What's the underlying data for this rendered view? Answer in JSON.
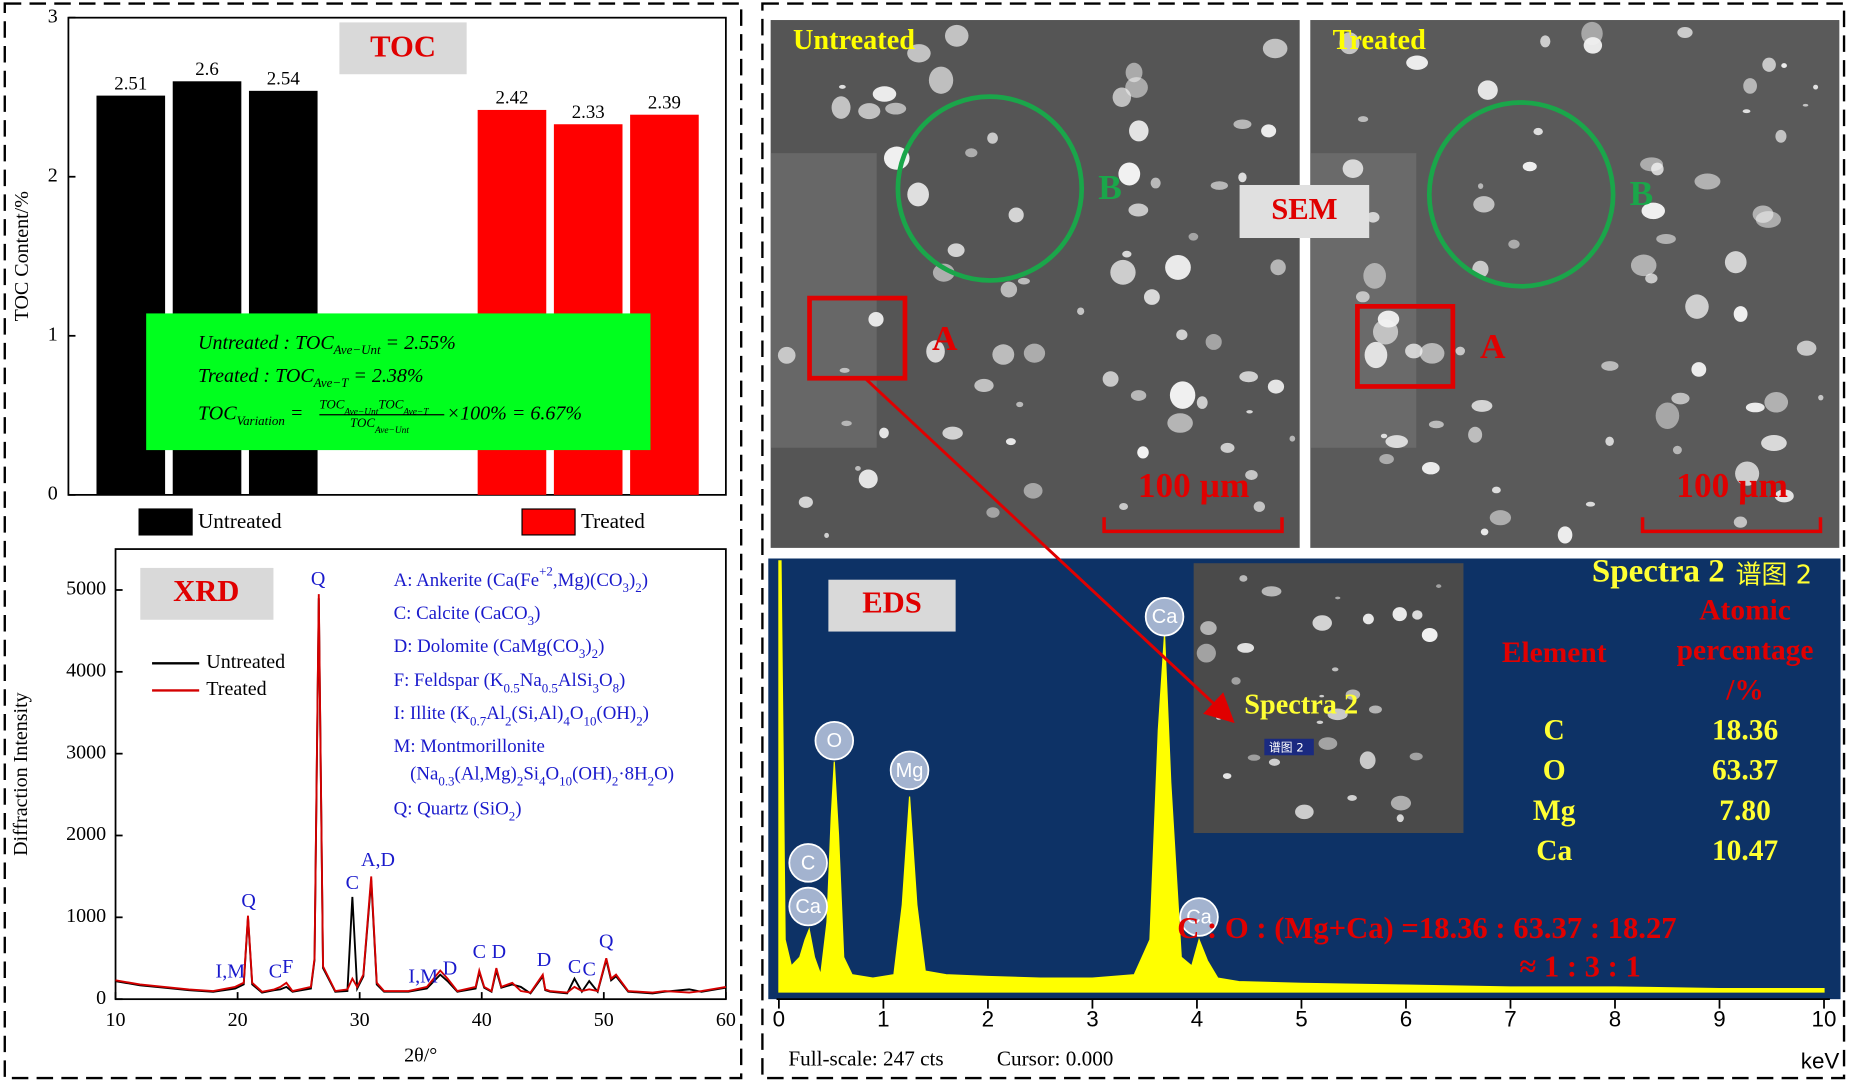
{
  "chart_data": [
    {
      "type": "bar",
      "title": "TOC",
      "ylabel": "TOC Content/%",
      "categories": [
        null,
        null,
        null,
        null,
        null,
        null,
        null,
        null
      ],
      "series": [
        {
          "name": "Untreated",
          "color": "#000000",
          "values": [
            2.51,
            2.6,
            2.54,
            null,
            null,
            null,
            null,
            null
          ]
        },
        {
          "name": "Treated",
          "color": "#ff0000",
          "values": [
            null,
            null,
            null,
            null,
            null,
            2.42,
            2.33,
            2.39
          ]
        }
      ],
      "ylim": [
        0,
        3
      ],
      "yticks": [
        0,
        1,
        2,
        3
      ],
      "grid": false,
      "legend": "bottom",
      "annotation": {
        "color": "#00ff1e",
        "lines": [
          [
            {
              "t": "Untreated : TOC"
            },
            {
              "sub": "Ave−Unt"
            },
            {
              "t": " = 2.55%"
            }
          ],
          [
            {
              "t": "Treated : TOC"
            },
            {
              "sub": "Ave−T"
            },
            {
              "t": " = 2.38%"
            }
          ],
          [
            {
              "t": "TOC"
            },
            {
              "sub": "Variation"
            },
            {
              "t": " = "
            }
          ]
        ],
        "numerator": [
          {
            "t": "TOC"
          },
          {
            "sub": "Ave−Unt"
          },
          {
            "t": "TOC"
          },
          {
            "sub": "Ave−T"
          }
        ],
        "denominator": [
          {
            "t": "TOC"
          },
          {
            "sub": "Ave−Unt"
          }
        ],
        "tail": [
          {
            "t": "×100% = 6.67%"
          }
        ]
      }
    },
    {
      "type": "line",
      "title": "XRD",
      "xlabel": "2θ/°",
      "ylabel": "Diffraction Intensity",
      "x": [
        10,
        12,
        14,
        16,
        18,
        19.8,
        20.5,
        20.85,
        21.2,
        22,
        23,
        23.5,
        24,
        24.5,
        26,
        26.3,
        26.65,
        27,
        28,
        29,
        29.4,
        29.8,
        30.3,
        30.95,
        31.4,
        32,
        34,
        35.5,
        36.6,
        37.2,
        38,
        39.5,
        39.8,
        40.2,
        40.8,
        41.2,
        41.6,
        42.5,
        43.2,
        44,
        45,
        45.2,
        45.6,
        47,
        47.6,
        48.2,
        48.8,
        49.5,
        50.2,
        50.6,
        51,
        52,
        54,
        55,
        57,
        58,
        60
      ],
      "series": [
        {
          "name": "Untreated",
          "color": "#000000",
          "values": [
            220,
            170,
            140,
            110,
            90,
            130,
            180,
            1000,
            180,
            80,
            110,
            120,
            150,
            90,
            130,
            480,
            4900,
            380,
            90,
            100,
            1250,
            130,
            280,
            1450,
            180,
            90,
            90,
            130,
            300,
            220,
            90,
            130,
            330,
            140,
            90,
            350,
            140,
            180,
            150,
            70,
            280,
            110,
            90,
            70,
            250,
            90,
            220,
            90,
            480,
            230,
            280,
            90,
            70,
            90,
            120,
            90,
            140
          ]
        },
        {
          "name": "Treated",
          "color": "#d40000",
          "values": [
            230,
            180,
            150,
            120,
            100,
            150,
            200,
            1020,
            200,
            90,
            120,
            150,
            200,
            100,
            150,
            500,
            4950,
            400,
            100,
            120,
            250,
            150,
            300,
            1500,
            200,
            100,
            100,
            150,
            350,
            250,
            100,
            150,
            350,
            150,
            100,
            380,
            150,
            200,
            100,
            80,
            300,
            120,
            100,
            80,
            150,
            100,
            120,
            100,
            500,
            250,
            300,
            100,
            80,
            100,
            80,
            100,
            150
          ]
        }
      ],
      "xlim": [
        10,
        60
      ],
      "xticks": [
        10,
        20,
        30,
        40,
        50,
        60
      ],
      "ylim": [
        0,
        5500
      ],
      "yticks": [
        0,
        1000,
        2000,
        3000,
        4000,
        5000
      ],
      "grid": false,
      "legend": "upper left",
      "peak_labels": [
        {
          "text": "I,M",
          "x": 19.4,
          "y": 320
        },
        {
          "text": "Q",
          "x": 20.9,
          "y": 1180
        },
        {
          "text": "C",
          "x": 23.1,
          "y": 320
        },
        {
          "text": "F",
          "x": 24.1,
          "y": 375
        },
        {
          "text": "Q",
          "x": 26.6,
          "y": 5120
        },
        {
          "text": "C",
          "x": 29.4,
          "y": 1400
        },
        {
          "text": "A,D",
          "x": 31.5,
          "y": 1685
        },
        {
          "text": "I,M",
          "x": 35.2,
          "y": 260
        },
        {
          "text": "D",
          "x": 37.4,
          "y": 360
        },
        {
          "text": "C",
          "x": 39.8,
          "y": 560
        },
        {
          "text": "D",
          "x": 41.4,
          "y": 560
        },
        {
          "text": "D",
          "x": 45.1,
          "y": 460
        },
        {
          "text": "C",
          "x": 47.6,
          "y": 375
        },
        {
          "text": "C",
          "x": 48.8,
          "y": 345
        },
        {
          "text": "Q",
          "x": 50.2,
          "y": 690
        }
      ],
      "minerals": [
        [
          {
            "t": "A: Ankerite (Ca(Fe"
          },
          {
            "sup": "+2"
          },
          {
            "t": ",Mg)(CO"
          },
          {
            "sub": "3"
          },
          {
            "t": ")"
          },
          {
            "sub": "2"
          },
          {
            "t": ")"
          }
        ],
        [
          {
            "t": "C: Calcite (CaCO"
          },
          {
            "sub": "3"
          },
          {
            "t": ")"
          }
        ],
        [
          {
            "t": "D: Dolomite (CaMg(CO"
          },
          {
            "sub": "3"
          },
          {
            "t": ")"
          },
          {
            "sub": "2"
          },
          {
            "t": ")"
          }
        ],
        [
          {
            "t": "F: Feldspar (K"
          },
          {
            "sub": "0.5"
          },
          {
            "t": "Na"
          },
          {
            "sub": "0.5"
          },
          {
            "t": "AlSi"
          },
          {
            "sub": "3"
          },
          {
            "t": "O"
          },
          {
            "sub": "8"
          },
          {
            "t": ")"
          }
        ],
        [
          {
            "t": "I: Illite (K"
          },
          {
            "sub": "0.7"
          },
          {
            "t": "Al"
          },
          {
            "sub": "2"
          },
          {
            "t": "(Si,Al)"
          },
          {
            "sub": "4"
          },
          {
            "t": "O"
          },
          {
            "sub": "10"
          },
          {
            "t": "(OH)"
          },
          {
            "sub": "2"
          },
          {
            "t": ")"
          }
        ],
        [
          {
            "t": "M: Montmorillonite"
          }
        ],
        [
          {
            "t": "(Na"
          },
          {
            "sub": "0.3"
          },
          {
            "t": "(Al,Mg)"
          },
          {
            "sub": "2"
          },
          {
            "t": "Si"
          },
          {
            "sub": "4"
          },
          {
            "t": "O"
          },
          {
            "sub": "10"
          },
          {
            "t": "(OH)"
          },
          {
            "sub": "2"
          },
          {
            "t": "·8H"
          },
          {
            "sub": "2"
          },
          {
            "t": "O)"
          }
        ],
        [
          {
            "t": "Q: Quartz (SiO"
          },
          {
            "sub": "2"
          },
          {
            "t": ")"
          }
        ]
      ]
    },
    {
      "type": "area",
      "title": "EDS",
      "color": "#ffff00",
      "x_unit": "keV",
      "x": [
        0,
        0.02,
        0.06,
        0.12,
        0.2,
        0.25,
        0.29,
        0.34,
        0.4,
        0.46,
        0.5,
        0.53,
        0.57,
        0.62,
        0.7,
        0.9,
        1.1,
        1.18,
        1.25,
        1.32,
        1.4,
        1.6,
        2,
        2.5,
        3,
        3.4,
        3.55,
        3.63,
        3.69,
        3.75,
        3.85,
        3.95,
        4.02,
        4.1,
        4.2,
        4.4,
        5,
        6,
        7,
        8,
        9,
        10
      ],
      "values": [
        247,
        247,
        30,
        15,
        20,
        30,
        36,
        20,
        10,
        40,
        100,
        132,
        90,
        20,
        10,
        8,
        10,
        50,
        112,
        50,
        12,
        10,
        9,
        8,
        8,
        10,
        30,
        150,
        205,
        120,
        20,
        15,
        30,
        18,
        8,
        6,
        5,
        4,
        3,
        3,
        2,
        2
      ],
      "xlim": [
        0,
        10
      ],
      "xticks": [
        0,
        1,
        2,
        3,
        4,
        5,
        6,
        7,
        8,
        9,
        10
      ],
      "ylim": [
        0,
        247
      ],
      "peak_labels": [
        {
          "text": "C",
          "x": 0.28,
          "y": 74
        },
        {
          "text": "Ca",
          "x": 0.28,
          "y": 49
        },
        {
          "text": "O",
          "x": 0.53,
          "y": 144
        },
        {
          "text": "Mg",
          "x": 1.25,
          "y": 127
        },
        {
          "text": "Ca",
          "x": 3.69,
          "y": 215
        },
        {
          "text": "Ca",
          "x": 4.02,
          "y": 43
        }
      ],
      "full_scale": "Full-scale: 247 cts",
      "cursor": "Cursor: 0.000",
      "inset_label": "Spectra 2",
      "inset_tag": "谱图 2",
      "table": {
        "title": "Spectra 2",
        "title_cn": "谱图 2",
        "element_header": "Element",
        "percent_header": [
          "Atomic",
          "percentage",
          "/%"
        ],
        "rows": [
          [
            "C",
            "18.36"
          ],
          [
            "O",
            "63.37"
          ],
          [
            "Mg",
            "7.80"
          ],
          [
            "Ca",
            "10.47"
          ]
        ]
      },
      "ratio": [
        "C : O : (Mg+Ca) =18.36 : 63.37 : 18.27",
        "≈ 1 : 3 : 1"
      ]
    }
  ],
  "sem": {
    "label": "SEM",
    "panels": [
      {
        "title": "Untreated",
        "box_label": "A",
        "circle_label": "B",
        "scale_bar": "100 µm"
      },
      {
        "title": "Treated",
        "box_label": "A",
        "circle_label": "B",
        "scale_bar": "100 µm"
      }
    ]
  }
}
